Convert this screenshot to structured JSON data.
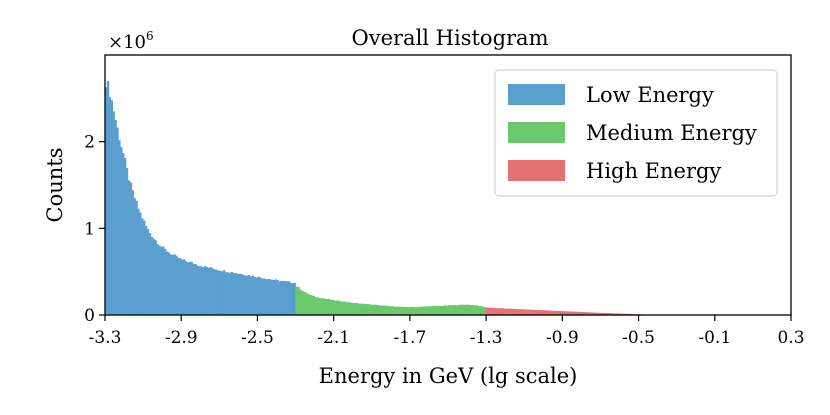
{
  "chart_data": {
    "type": "histogram",
    "title": "Overall Histogram",
    "xlabel": "Energy in GeV (lg scale)",
    "ylabel": "Counts",
    "y_multiplier": "×10^6",
    "y_multiplier_base": "×10",
    "y_multiplier_exp": "6",
    "xlim": [
      -3.3,
      0.3
    ],
    "ylim": [
      0,
      3.0
    ],
    "x_ticks": [
      "-3.3",
      "-2.9",
      "-2.5",
      "-2.1",
      "-1.7",
      "-1.3",
      "-0.9",
      "-0.5",
      "-0.1",
      "0.3"
    ],
    "x_tick_values": [
      -3.3,
      -2.9,
      -2.5,
      -2.1,
      -1.7,
      -1.3,
      -0.9,
      -0.5,
      -0.1,
      0.3
    ],
    "y_ticks": [
      "0",
      "1",
      "2"
    ],
    "y_tick_values": [
      0,
      1,
      2
    ],
    "bin_width": 0.01,
    "legend_position": "top-right",
    "series": [
      {
        "name": "Low Energy",
        "color": "#5b9fcf",
        "range": [
          -3.3,
          -2.3
        ],
        "anchors": [
          [
            -3.3,
            2.72
          ],
          [
            -3.28,
            2.62
          ],
          [
            -3.26,
            2.42
          ],
          [
            -3.24,
            2.2
          ],
          [
            -3.22,
            2.0
          ],
          [
            -3.2,
            1.82
          ],
          [
            -3.18,
            1.62
          ],
          [
            -3.16,
            1.45
          ],
          [
            -3.14,
            1.32
          ],
          [
            -3.12,
            1.2
          ],
          [
            -3.1,
            1.1
          ],
          [
            -3.08,
            1.0
          ],
          [
            -3.05,
            0.9
          ],
          [
            -3.0,
            0.78
          ],
          [
            -2.95,
            0.7
          ],
          [
            -2.9,
            0.64
          ],
          [
            -2.8,
            0.57
          ],
          [
            -2.7,
            0.52
          ],
          [
            -2.6,
            0.48
          ],
          [
            -2.5,
            0.44
          ],
          [
            -2.4,
            0.4
          ],
          [
            -2.3,
            0.37
          ]
        ]
      },
      {
        "name": "Medium Energy",
        "color": "#6cc86c",
        "range": [
          -2.3,
          -1.3
        ],
        "anchors": [
          [
            -2.3,
            0.34
          ],
          [
            -2.25,
            0.26
          ],
          [
            -2.2,
            0.21
          ],
          [
            -2.1,
            0.17
          ],
          [
            -2.0,
            0.14
          ],
          [
            -1.9,
            0.12
          ],
          [
            -1.8,
            0.1
          ],
          [
            -1.7,
            0.09
          ],
          [
            -1.6,
            0.1
          ],
          [
            -1.5,
            0.11
          ],
          [
            -1.4,
            0.12
          ],
          [
            -1.35,
            0.11
          ],
          [
            -1.3,
            0.09
          ]
        ]
      },
      {
        "name": "High Energy",
        "color": "#e57373",
        "range": [
          -1.3,
          -0.4
        ],
        "anchors": [
          [
            -1.3,
            0.085
          ],
          [
            -1.2,
            0.075
          ],
          [
            -1.1,
            0.065
          ],
          [
            -1.0,
            0.055
          ],
          [
            -0.9,
            0.045
          ],
          [
            -0.8,
            0.035
          ],
          [
            -0.7,
            0.025
          ],
          [
            -0.6,
            0.017
          ],
          [
            -0.5,
            0.009
          ],
          [
            -0.45,
            0.004
          ],
          [
            -0.4,
            0.0
          ]
        ]
      }
    ]
  }
}
